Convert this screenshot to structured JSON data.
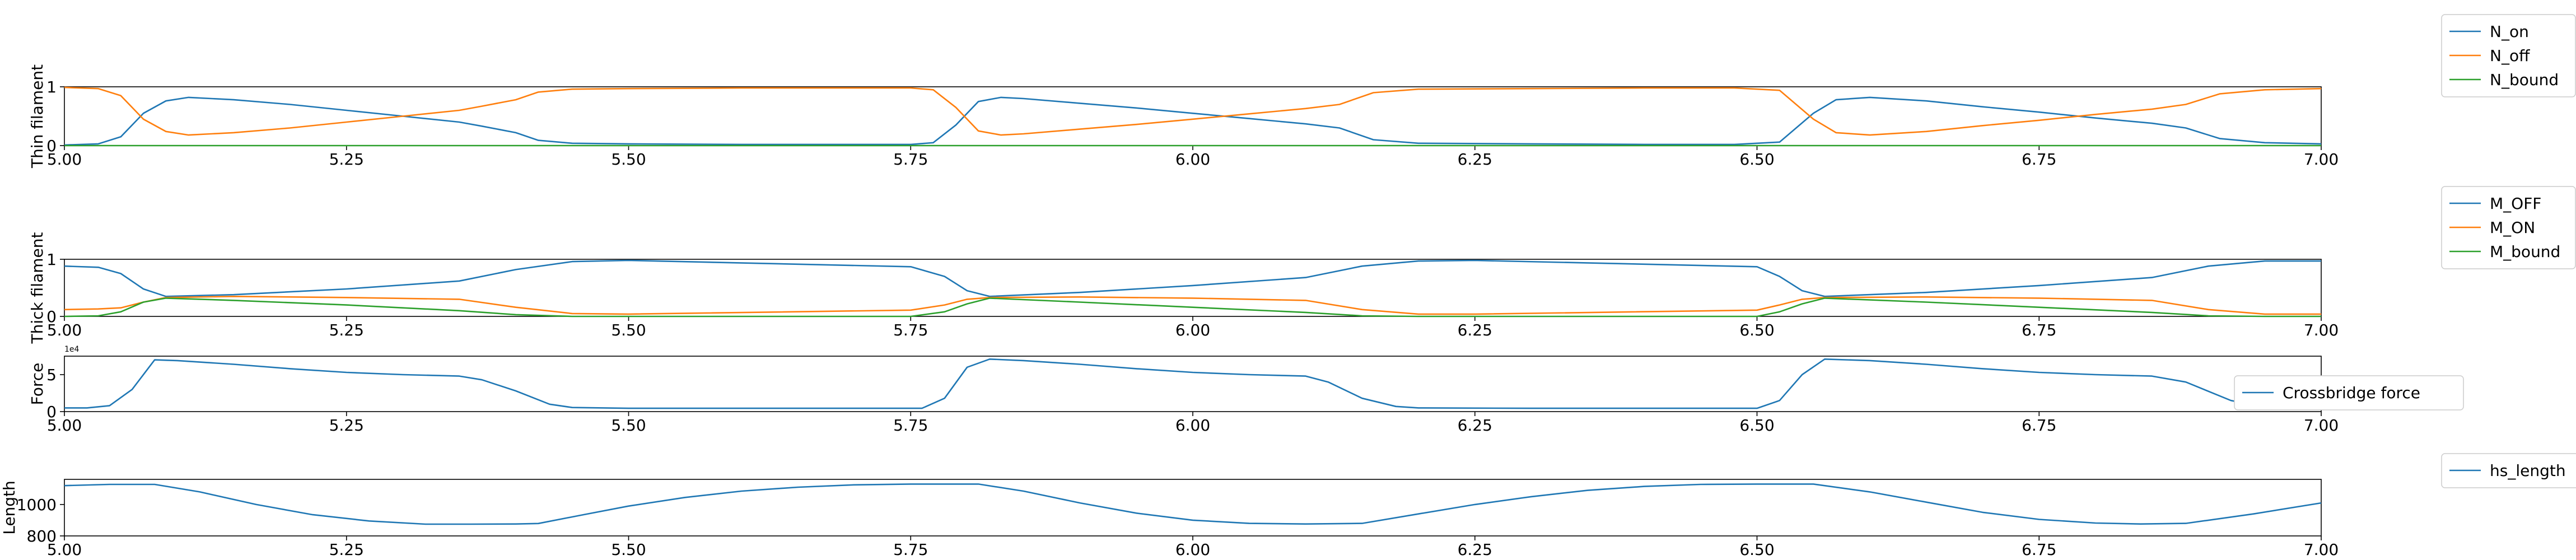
{
  "chart_data": [
    {
      "type": "line",
      "ylabel": "Thin filament",
      "xlim": [
        5.0,
        7.0
      ],
      "ylim": [
        0,
        1
      ],
      "x_ticks": [
        "5.00",
        "5.25",
        "5.50",
        "5.75",
        "6.00",
        "6.25",
        "6.50",
        "6.75",
        "7.00"
      ],
      "y_ticks": [
        "0",
        "1"
      ],
      "legend_location": "outside top-right",
      "series": [
        {
          "name": "N_on",
          "color": "#1f77b4",
          "x": [
            5.0,
            5.03,
            5.05,
            5.07,
            5.09,
            5.11,
            5.15,
            5.2,
            5.25,
            5.3,
            5.35,
            5.37,
            5.4,
            5.42,
            5.45,
            5.5,
            5.6,
            5.7,
            5.75,
            5.77,
            5.79,
            5.81,
            5.83,
            5.85,
            5.9,
            5.95,
            6.0,
            6.05,
            6.1,
            6.13,
            6.16,
            6.2,
            6.3,
            6.4,
            6.48,
            6.52,
            6.55,
            6.57,
            6.6,
            6.65,
            6.7,
            6.75,
            6.8,
            6.85,
            6.88,
            6.91,
            6.95,
            7.0
          ],
          "y": [
            0.01,
            0.03,
            0.15,
            0.55,
            0.76,
            0.82,
            0.78,
            0.7,
            0.6,
            0.5,
            0.4,
            0.33,
            0.22,
            0.09,
            0.04,
            0.03,
            0.02,
            0.02,
            0.02,
            0.05,
            0.35,
            0.75,
            0.82,
            0.8,
            0.72,
            0.64,
            0.55,
            0.46,
            0.37,
            0.3,
            0.1,
            0.04,
            0.03,
            0.02,
            0.02,
            0.06,
            0.55,
            0.78,
            0.82,
            0.76,
            0.66,
            0.57,
            0.47,
            0.38,
            0.3,
            0.12,
            0.05,
            0.03
          ]
        },
        {
          "name": "N_off",
          "color": "#ff7f0e",
          "x": [
            5.0,
            5.03,
            5.05,
            5.07,
            5.09,
            5.11,
            5.15,
            5.2,
            5.25,
            5.3,
            5.35,
            5.37,
            5.4,
            5.42,
            5.45,
            5.5,
            5.6,
            5.7,
            5.75,
            5.77,
            5.79,
            5.81,
            5.83,
            5.85,
            5.9,
            5.95,
            6.0,
            6.05,
            6.1,
            6.13,
            6.16,
            6.2,
            6.3,
            6.4,
            6.48,
            6.52,
            6.55,
            6.57,
            6.6,
            6.65,
            6.7,
            6.75,
            6.8,
            6.85,
            6.88,
            6.91,
            6.95,
            7.0
          ],
          "y": [
            0.99,
            0.97,
            0.85,
            0.45,
            0.24,
            0.18,
            0.22,
            0.3,
            0.4,
            0.5,
            0.6,
            0.67,
            0.78,
            0.91,
            0.96,
            0.97,
            0.98,
            0.98,
            0.98,
            0.95,
            0.65,
            0.25,
            0.18,
            0.2,
            0.28,
            0.36,
            0.45,
            0.54,
            0.63,
            0.7,
            0.9,
            0.96,
            0.97,
            0.98,
            0.98,
            0.94,
            0.45,
            0.22,
            0.18,
            0.24,
            0.34,
            0.43,
            0.53,
            0.62,
            0.7,
            0.88,
            0.95,
            0.97
          ]
        },
        {
          "name": "N_bound",
          "color": "#2ca02c",
          "x": [
            5.0,
            7.0
          ],
          "y": [
            0.0,
            0.0
          ]
        }
      ]
    },
    {
      "type": "line",
      "ylabel": "Thick filament",
      "xlim": [
        5.0,
        7.0
      ],
      "ylim": [
        0,
        1
      ],
      "x_ticks": [
        "5.00",
        "5.25",
        "5.50",
        "5.75",
        "6.00",
        "6.25",
        "6.50",
        "6.75",
        "7.00"
      ],
      "y_ticks": [
        "0",
        "1"
      ],
      "legend_location": "outside top-right",
      "series": [
        {
          "name": "M_OFF",
          "color": "#1f77b4",
          "x": [
            5.0,
            5.03,
            5.05,
            5.07,
            5.09,
            5.15,
            5.25,
            5.35,
            5.4,
            5.45,
            5.5,
            5.75,
            5.78,
            5.8,
            5.82,
            5.9,
            6.0,
            6.1,
            6.15,
            6.2,
            6.25,
            6.5,
            6.52,
            6.54,
            6.56,
            6.65,
            6.75,
            6.85,
            6.9,
            6.95,
            7.0
          ],
          "y": [
            0.88,
            0.86,
            0.75,
            0.48,
            0.35,
            0.38,
            0.48,
            0.62,
            0.82,
            0.96,
            0.98,
            0.87,
            0.7,
            0.45,
            0.35,
            0.42,
            0.54,
            0.68,
            0.88,
            0.97,
            0.98,
            0.87,
            0.7,
            0.45,
            0.35,
            0.42,
            0.54,
            0.68,
            0.88,
            0.97,
            0.97
          ]
        },
        {
          "name": "M_ON",
          "color": "#ff7f0e",
          "x": [
            5.0,
            5.03,
            5.05,
            5.07,
            5.09,
            5.15,
            5.25,
            5.35,
            5.4,
            5.45,
            5.5,
            5.75,
            5.78,
            5.8,
            5.82,
            5.9,
            6.0,
            6.1,
            6.15,
            6.2,
            6.25,
            6.5,
            6.52,
            6.54,
            6.56,
            6.65,
            6.75,
            6.85,
            6.9,
            6.95,
            7.0
          ],
          "y": [
            0.12,
            0.13,
            0.15,
            0.25,
            0.33,
            0.35,
            0.33,
            0.3,
            0.16,
            0.05,
            0.04,
            0.11,
            0.2,
            0.3,
            0.33,
            0.34,
            0.32,
            0.28,
            0.12,
            0.04,
            0.04,
            0.11,
            0.2,
            0.3,
            0.33,
            0.34,
            0.32,
            0.28,
            0.12,
            0.04,
            0.04
          ]
        },
        {
          "name": "M_bound",
          "color": "#2ca02c",
          "x": [
            5.0,
            5.03,
            5.05,
            5.07,
            5.09,
            5.15,
            5.25,
            5.35,
            5.4,
            5.45,
            5.5,
            5.75,
            5.78,
            5.8,
            5.82,
            5.9,
            6.0,
            6.1,
            6.15,
            6.2,
            6.25,
            6.5,
            6.52,
            6.54,
            6.56,
            6.65,
            6.75,
            6.85,
            6.9,
            6.95,
            7.0
          ],
          "y": [
            0.0,
            0.01,
            0.08,
            0.25,
            0.32,
            0.28,
            0.2,
            0.1,
            0.03,
            0.0,
            0.0,
            0.0,
            0.08,
            0.22,
            0.32,
            0.25,
            0.16,
            0.07,
            0.01,
            0.0,
            0.0,
            0.0,
            0.08,
            0.22,
            0.32,
            0.25,
            0.16,
            0.07,
            0.01,
            0.0,
            0.0
          ]
        }
      ]
    },
    {
      "type": "line",
      "ylabel": "Force",
      "xlim": [
        5.0,
        7.0
      ],
      "ylim": [
        0,
        75000
      ],
      "y_scale_label": "1e4",
      "x_ticks": [
        "5.00",
        "5.25",
        "5.50",
        "5.75",
        "6.00",
        "6.25",
        "6.50",
        "6.75",
        "7.00"
      ],
      "y_ticks": [
        "0",
        "5"
      ],
      "y_tick_values": [
        0,
        50000
      ],
      "legend_location": "right",
      "series": [
        {
          "name": "Crossbridge force",
          "color": "#1f77b4",
          "x": [
            5.0,
            5.02,
            5.04,
            5.06,
            5.08,
            5.1,
            5.15,
            5.2,
            5.25,
            5.3,
            5.35,
            5.37,
            5.4,
            5.43,
            5.45,
            5.5,
            5.6,
            5.7,
            5.76,
            5.78,
            5.8,
            5.82,
            5.85,
            5.9,
            5.95,
            6.0,
            6.05,
            6.1,
            6.12,
            6.15,
            6.18,
            6.2,
            6.3,
            6.4,
            6.5,
            6.52,
            6.54,
            6.56,
            6.6,
            6.65,
            6.7,
            6.75,
            6.8,
            6.85,
            6.88,
            6.92,
            6.95,
            7.0
          ],
          "y": [
            5000,
            5000,
            8000,
            30000,
            70000,
            69000,
            64000,
            58000,
            53000,
            50000,
            48000,
            43000,
            28000,
            10000,
            5500,
            4500,
            4500,
            4500,
            4500,
            18000,
            60000,
            71000,
            69000,
            64000,
            58000,
            53000,
            50000,
            48000,
            40000,
            18000,
            7000,
            5000,
            4500,
            4500,
            4500,
            15000,
            50000,
            71000,
            69000,
            64000,
            58000,
            53000,
            50000,
            48000,
            40000,
            15000,
            6000,
            5000
          ]
        }
      ]
    },
    {
      "type": "line",
      "ylabel": "Length",
      "xlim": [
        5.0,
        7.0
      ],
      "ylim": [
        800,
        1160
      ],
      "x_ticks": [
        "5.00",
        "5.25",
        "5.50",
        "5.75",
        "6.00",
        "6.25",
        "6.50",
        "6.75",
        "7.00"
      ],
      "y_ticks": [
        "800",
        "1000"
      ],
      "y_tick_values": [
        800,
        1000
      ],
      "legend_location": "outside top-right",
      "series": [
        {
          "name": "hs_length",
          "color": "#1f77b4",
          "x": [
            5.0,
            5.04,
            5.08,
            5.12,
            5.17,
            5.22,
            5.27,
            5.32,
            5.36,
            5.4,
            5.42,
            5.46,
            5.5,
            5.55,
            5.6,
            5.65,
            5.7,
            5.75,
            5.81,
            5.85,
            5.9,
            5.95,
            6.0,
            6.05,
            6.1,
            6.15,
            6.2,
            6.25,
            6.3,
            6.35,
            6.4,
            6.45,
            6.5,
            6.55,
            6.6,
            6.65,
            6.7,
            6.75,
            6.8,
            6.84,
            6.88,
            6.94,
            7.0
          ],
          "y": [
            1120,
            1128,
            1128,
            1080,
            1000,
            935,
            895,
            875,
            875,
            876,
            879,
            935,
            990,
            1045,
            1085,
            1110,
            1125,
            1130,
            1130,
            1085,
            1010,
            945,
            900,
            880,
            876,
            880,
            940,
            1000,
            1050,
            1090,
            1115,
            1128,
            1130,
            1130,
            1080,
            1015,
            950,
            905,
            882,
            876,
            880,
            940,
            1010
          ]
        }
      ]
    }
  ]
}
